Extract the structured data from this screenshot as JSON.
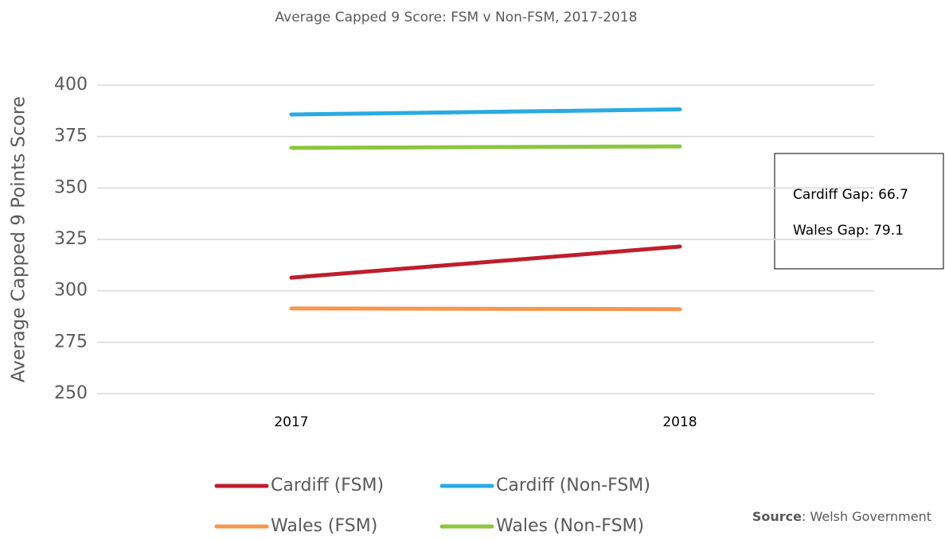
{
  "chart_data": {
    "type": "line",
    "title": "Average Capped 9 Score: FSM v Non-FSM, 2017-2018",
    "y_label": "Average Capped 9 Points Score",
    "categories": [
      "2017",
      "2018"
    ],
    "series": [
      {
        "name": "Cardiff (FSM)",
        "color": "#be1e2d",
        "values": [
          306.4,
          321.5
        ]
      },
      {
        "name": "Cardiff (Non-FSM)",
        "color": "#29abe2",
        "values": [
          385.7,
          388.2
        ]
      },
      {
        "name": "Wales (FSM)",
        "color": "#f7964f",
        "values": [
          291.4,
          291.1
        ]
      },
      {
        "name": "Wales (Non-FSM)",
        "color": "#8cc63f",
        "values": [
          369.5,
          370.2
        ]
      }
    ],
    "ylim": [
      250,
      400
    ],
    "yticks": [
      250,
      275,
      300,
      325,
      350,
      375,
      400
    ],
    "grid": true,
    "annotations": [
      "Cardiff Gap: 66.7",
      "Wales Gap: 79.1"
    ],
    "source_label": "Source",
    "source_text": ": Welsh Government"
  }
}
